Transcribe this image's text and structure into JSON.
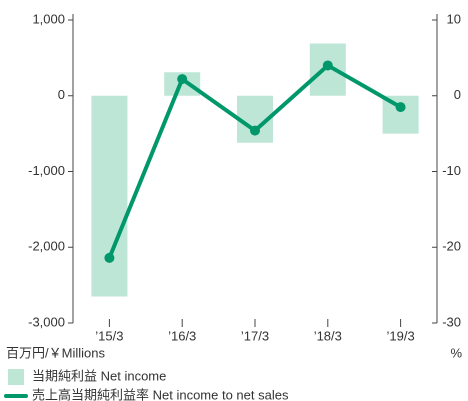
{
  "chart_data": {
    "type": "bar_line",
    "categories": [
      "’15/3",
      "’16/3",
      "’17/3",
      "’18/3",
      "’19/3"
    ],
    "series": [
      {
        "name": "当期純利益 Net income",
        "color": "#bde6d6",
        "type": "bar",
        "values": [
          -2650,
          310,
          -620,
          690,
          -500
        ]
      },
      {
        "name": "売上高当期純利益率 Net income to net sales",
        "color": "#00986a",
        "type": "line",
        "axis": "y2",
        "values": [
          -21.4,
          2.2,
          -4.6,
          4.0,
          -1.5
        ]
      }
    ],
    "ylim": [
      -3000,
      1000
    ],
    "yticks": [
      {
        "value": 1000,
        "label": "1,000"
      },
      0,
      {
        "value": -1000,
        "label": "-1,000"
      },
      {
        "value": -2000,
        "label": "-2,000"
      },
      {
        "value": -3000,
        "label": "-3,000"
      }
    ],
    "y2lim": [
      -30,
      10
    ],
    "y2ticks": [
      10,
      0,
      -10,
      -20,
      -30
    ],
    "y_label": "百万円/￥Millions",
    "y2_label": "%"
  }
}
